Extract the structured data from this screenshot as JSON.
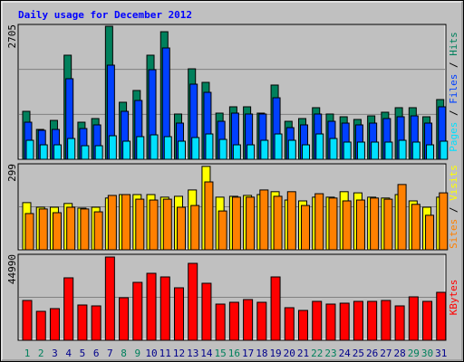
{
  "chart_data": [
    {
      "type": "bar",
      "title": "Daily usage for December 2012",
      "ylim": [
        0,
        2705
      ],
      "yticks": [
        2705
      ],
      "series": [
        {
          "name": "Hits",
          "color": "#00805c",
          "values": [
            962,
            599,
            780,
            2088,
            744,
            817,
            2668,
            1144,
            1380,
            2088,
            2559,
            908,
            1815,
            1543,
            926,
            1053,
            1053,
            926,
            1489,
            762,
            817,
            1035,
            908,
            853,
            799,
            871,
            944,
            1035,
            1035,
            853,
            1198
          ]
        },
        {
          "name": "Files",
          "color": "#0040ff",
          "values": [
            744,
            581,
            599,
            1616,
            617,
            690,
            1888,
            962,
            1180,
            1797,
            2233,
            726,
            1507,
            1343,
            762,
            926,
            908,
            908,
            1234,
            635,
            690,
            908,
            762,
            726,
            690,
            726,
            817,
            853,
            871,
            726,
            1053
          ]
        },
        {
          "name": "Pages",
          "color": "#00e0ff",
          "values": [
            381,
            290,
            290,
            417,
            272,
            272,
            472,
            363,
            454,
            490,
            454,
            363,
            436,
            508,
            399,
            290,
            290,
            381,
            508,
            381,
            290,
            508,
            417,
            345,
            345,
            345,
            345,
            381,
            345,
            290,
            363
          ]
        }
      ]
    },
    {
      "type": "bar",
      "ylim": [
        0,
        299
      ],
      "yticks": [
        299
      ],
      "series": [
        {
          "name": "Visits",
          "color": "#ffff00",
          "values": [
            164,
            148,
            148,
            161,
            145,
            148,
            180,
            192,
            192,
            192,
            183,
            186,
            208,
            290,
            183,
            186,
            189,
            192,
            202,
            173,
            170,
            183,
            183,
            202,
            198,
            183,
            180,
            192,
            170,
            148,
            183
          ]
        },
        {
          "name": "Sites",
          "color": "#ff8000",
          "values": [
            126,
            142,
            129,
            148,
            142,
            132,
            189,
            192,
            176,
            173,
            176,
            148,
            154,
            236,
            135,
            183,
            183,
            208,
            186,
            202,
            154,
            195,
            180,
            170,
            173,
            180,
            176,
            227,
            158,
            120,
            198
          ]
        }
      ]
    },
    {
      "type": "bar",
      "ylim": [
        0,
        44990
      ],
      "yticks": [
        44990
      ],
      "categories": [
        "1",
        "2",
        "3",
        "4",
        "5",
        "6",
        "7",
        "8",
        "9",
        "10",
        "11",
        "12",
        "13",
        "14",
        "15",
        "16",
        "17",
        "18",
        "19",
        "20",
        "21",
        "22",
        "23",
        "24",
        "25",
        "26",
        "27",
        "28",
        "29",
        "30",
        "31"
      ],
      "category_colors": [
        "#00805c",
        "#00805c",
        "#00008b",
        "#00008b",
        "#00008b",
        "#00008b",
        "#00008b",
        "#00805c",
        "#00805c",
        "#00008b",
        "#00008b",
        "#00008b",
        "#00008b",
        "#00008b",
        "#00805c",
        "#00805c",
        "#00008b",
        "#00008b",
        "#00008b",
        "#00008b",
        "#00008b",
        "#00805c",
        "#00805c",
        "#00008b",
        "#00008b",
        "#00008b",
        "#00008b",
        "#00008b",
        "#00805c",
        "#00805c",
        "#00008b"
      ],
      "series": [
        {
          "name": "KBytes",
          "color": "#ff0000",
          "values": [
            20838,
            15155,
            16576,
            32679,
            18471,
            17997,
            43571,
            22259,
            30311,
            35047,
            33152,
            27469,
            40256,
            29837,
            18944,
            19891,
            21312,
            19891,
            33152,
            17050,
            15629,
            20365,
            18944,
            19418,
            20365,
            20365,
            20838,
            17997,
            22733,
            20365,
            25100
          ]
        }
      ]
    }
  ]
}
